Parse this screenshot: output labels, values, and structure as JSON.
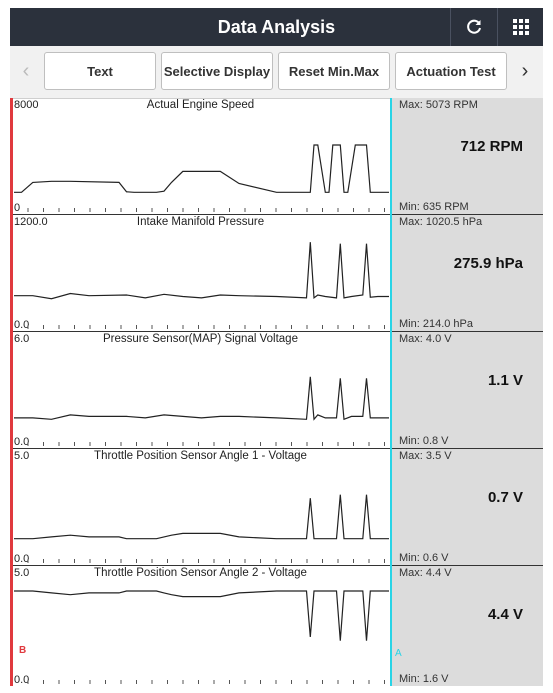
{
  "header": {
    "title": "Data Analysis",
    "refresh_icon": "refresh-icon",
    "menu_icon": "grid-icon"
  },
  "toolbar": {
    "prev": "‹",
    "next": "›",
    "buttons": [
      "Text",
      "Selective Display",
      "Reset Min.Max",
      "Actuation Test"
    ]
  },
  "cursors": {
    "a": "A",
    "b": "B"
  },
  "chart_data": [
    {
      "type": "line",
      "title": "Actual Engine Speed",
      "ymax_label": "8000",
      "ymin_label": "0",
      "ylim": [
        0,
        8000
      ],
      "max": "Max: 5073 RPM",
      "min": "Min: 635 RPM",
      "value": "712 RPM",
      "x": [
        0,
        0.02,
        0.05,
        0.1,
        0.15,
        0.28,
        0.3,
        0.32,
        0.38,
        0.4,
        0.42,
        0.45,
        0.5,
        0.55,
        0.6,
        0.7,
        0.75,
        0.78,
        0.79,
        0.8,
        0.81,
        0.83,
        0.84,
        0.85,
        0.87,
        0.88,
        0.89,
        0.91,
        0.94,
        0.95,
        0.97,
        1
      ],
      "y": [
        700,
        700,
        1600,
        1700,
        1700,
        1600,
        750,
        700,
        700,
        800,
        1600,
        2600,
        2600,
        2600,
        1500,
        700,
        700,
        700,
        700,
        5000,
        5000,
        700,
        700,
        5000,
        5000,
        700,
        700,
        5000,
        5000,
        700,
        700,
        700
      ]
    },
    {
      "type": "line",
      "title": "Intake Manifold Pressure",
      "ymax_label": "1200.0",
      "ymin_label": "0.0",
      "ylim": [
        0,
        1200
      ],
      "max": "Max: 1020.5 hPa",
      "min": "Min: 214.0 hPa",
      "value": "275.9 hPa",
      "x": [
        0,
        0.05,
        0.1,
        0.15,
        0.2,
        0.3,
        0.35,
        0.4,
        0.45,
        0.5,
        0.55,
        0.6,
        0.7,
        0.78,
        0.79,
        0.8,
        0.81,
        0.83,
        0.86,
        0.87,
        0.88,
        0.9,
        0.93,
        0.94,
        0.95,
        0.97,
        1
      ],
      "y": [
        290,
        290,
        250,
        320,
        290,
        300,
        260,
        310,
        280,
        260,
        300,
        290,
        280,
        260,
        1020,
        260,
        300,
        280,
        260,
        1000,
        260,
        280,
        300,
        1000,
        270,
        280,
        280
      ]
    },
    {
      "type": "line",
      "title": "Pressure Sensor(MAP) Signal Voltage",
      "ymax_label": "6.0",
      "ymin_label": "0.0",
      "ylim": [
        0,
        6
      ],
      "max": "Max: 4.0 V",
      "min": "Min: 0.8 V",
      "value": "1.1 V",
      "x": [
        0,
        0.05,
        0.1,
        0.15,
        0.2,
        0.3,
        0.35,
        0.4,
        0.45,
        0.5,
        0.55,
        0.6,
        0.7,
        0.78,
        0.79,
        0.8,
        0.81,
        0.83,
        0.86,
        0.87,
        0.88,
        0.9,
        0.93,
        0.94,
        0.95,
        0.97,
        1
      ],
      "y": [
        1.1,
        1.1,
        1.0,
        1.3,
        1.2,
        1.2,
        1.1,
        1.3,
        1.2,
        1.1,
        1.2,
        1.2,
        1.1,
        1.0,
        3.9,
        1.0,
        1.3,
        1.1,
        1.1,
        3.8,
        1.0,
        1.2,
        1.2,
        3.8,
        1.1,
        1.1,
        1.1
      ]
    },
    {
      "type": "line",
      "title": "Throttle Position Sensor Angle 1 - Voltage",
      "ymax_label": "5.0",
      "ymin_label": "0.0",
      "ylim": [
        0,
        5
      ],
      "max": "Max: 3.5 V",
      "min": "Min: 0.6 V",
      "value": "0.7 V",
      "x": [
        0,
        0.05,
        0.1,
        0.15,
        0.2,
        0.28,
        0.3,
        0.32,
        0.38,
        0.4,
        0.42,
        0.45,
        0.5,
        0.55,
        0.6,
        0.7,
        0.78,
        0.79,
        0.8,
        0.81,
        0.83,
        0.86,
        0.87,
        0.88,
        0.9,
        0.93,
        0.94,
        0.95,
        0.97,
        1
      ],
      "y": [
        0.7,
        0.7,
        0.8,
        0.9,
        0.8,
        0.8,
        0.7,
        0.7,
        0.7,
        0.8,
        0.9,
        1.0,
        1.0,
        1.0,
        0.8,
        0.7,
        0.7,
        3.0,
        0.7,
        0.7,
        0.7,
        0.7,
        3.2,
        0.7,
        0.7,
        0.7,
        3.2,
        0.7,
        0.7,
        0.7
      ]
    },
    {
      "type": "line",
      "title": "Throttle Position Sensor Angle 2 - Voltage",
      "ymax_label": "5.0",
      "ymin_label": "0.0",
      "ylim": [
        0,
        5
      ],
      "max": "Max: 4.4 V",
      "min": "Min: 1.6 V",
      "value": "4.4 V",
      "x": [
        0,
        0.05,
        0.1,
        0.15,
        0.2,
        0.28,
        0.3,
        0.32,
        0.38,
        0.4,
        0.42,
        0.45,
        0.5,
        0.55,
        0.6,
        0.7,
        0.78,
        0.79,
        0.8,
        0.81,
        0.83,
        0.86,
        0.87,
        0.88,
        0.9,
        0.93,
        0.94,
        0.95,
        0.97,
        1
      ],
      "y": [
        4.4,
        4.4,
        4.3,
        4.2,
        4.3,
        4.3,
        4.4,
        4.4,
        4.4,
        4.3,
        4.2,
        4.1,
        4.1,
        4.1,
        4.3,
        4.4,
        4.4,
        1.9,
        4.4,
        4.4,
        4.4,
        4.4,
        1.7,
        4.4,
        4.4,
        4.4,
        1.7,
        4.4,
        4.4,
        4.4
      ]
    }
  ]
}
